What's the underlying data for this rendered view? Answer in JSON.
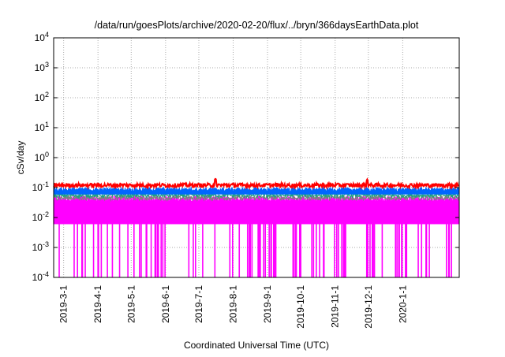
{
  "chart_data": {
    "type": "line",
    "title": "/data/run/goesPlots/archive/2020-02-20/flux/../bryn/366daysEarthData.plot",
    "xlabel": "Coordinated Universal Time (UTC)",
    "ylabel": "cSv/day",
    "yscale": "log",
    "ylim": [
      0.0001,
      10000
    ],
    "xlim": [
      "2019-02-20",
      "2020-02-20"
    ],
    "grid": true,
    "ytick_labels": [
      {
        "base": "10",
        "exp": "-4",
        "value": 0.0001
      },
      {
        "base": "10",
        "exp": "-3",
        "value": 0.001
      },
      {
        "base": "10",
        "exp": "-2",
        "value": 0.01
      },
      {
        "base": "10",
        "exp": "-1",
        "value": 0.1
      },
      {
        "base": "10",
        "exp": "0",
        "value": 1
      },
      {
        "base": "10",
        "exp": "1",
        "value": 10
      },
      {
        "base": "10",
        "exp": "2",
        "value": 100
      },
      {
        "base": "10",
        "exp": "3",
        "value": 1000
      },
      {
        "base": "10",
        "exp": "4",
        "value": 10000
      }
    ],
    "xtick_labels": [
      {
        "label": "2019-3-1",
        "day": 9
      },
      {
        "label": "2019-4-1",
        "day": 40
      },
      {
        "label": "2019-5-1",
        "day": 70
      },
      {
        "label": "2019-6-1",
        "day": 101
      },
      {
        "label": "2019-7-1",
        "day": 131
      },
      {
        "label": "2019-8-1",
        "day": 162
      },
      {
        "label": "2019-9-1",
        "day": 193
      },
      {
        "label": "2019-10-1",
        "day": 223
      },
      {
        "label": "2019-11-1",
        "day": 254
      },
      {
        "label": "2019-12-1",
        "day": 284
      },
      {
        "label": "2020-1-1",
        "day": 315
      }
    ],
    "days": 366,
    "series": [
      {
        "name": "red",
        "color": "#ff0000",
        "typical": 0.12,
        "max": 0.2
      },
      {
        "name": "blue",
        "color": "#0066ff",
        "typical": 0.085
      },
      {
        "name": "green",
        "color": "#20a080",
        "typical": 0.055
      },
      {
        "name": "gray",
        "color": "#808080",
        "typical": 0.045
      },
      {
        "name": "magenta",
        "color": "#ff00ff",
        "typical_range": [
          0.006,
          0.045
        ],
        "dropout_min": 0.0001
      }
    ]
  }
}
